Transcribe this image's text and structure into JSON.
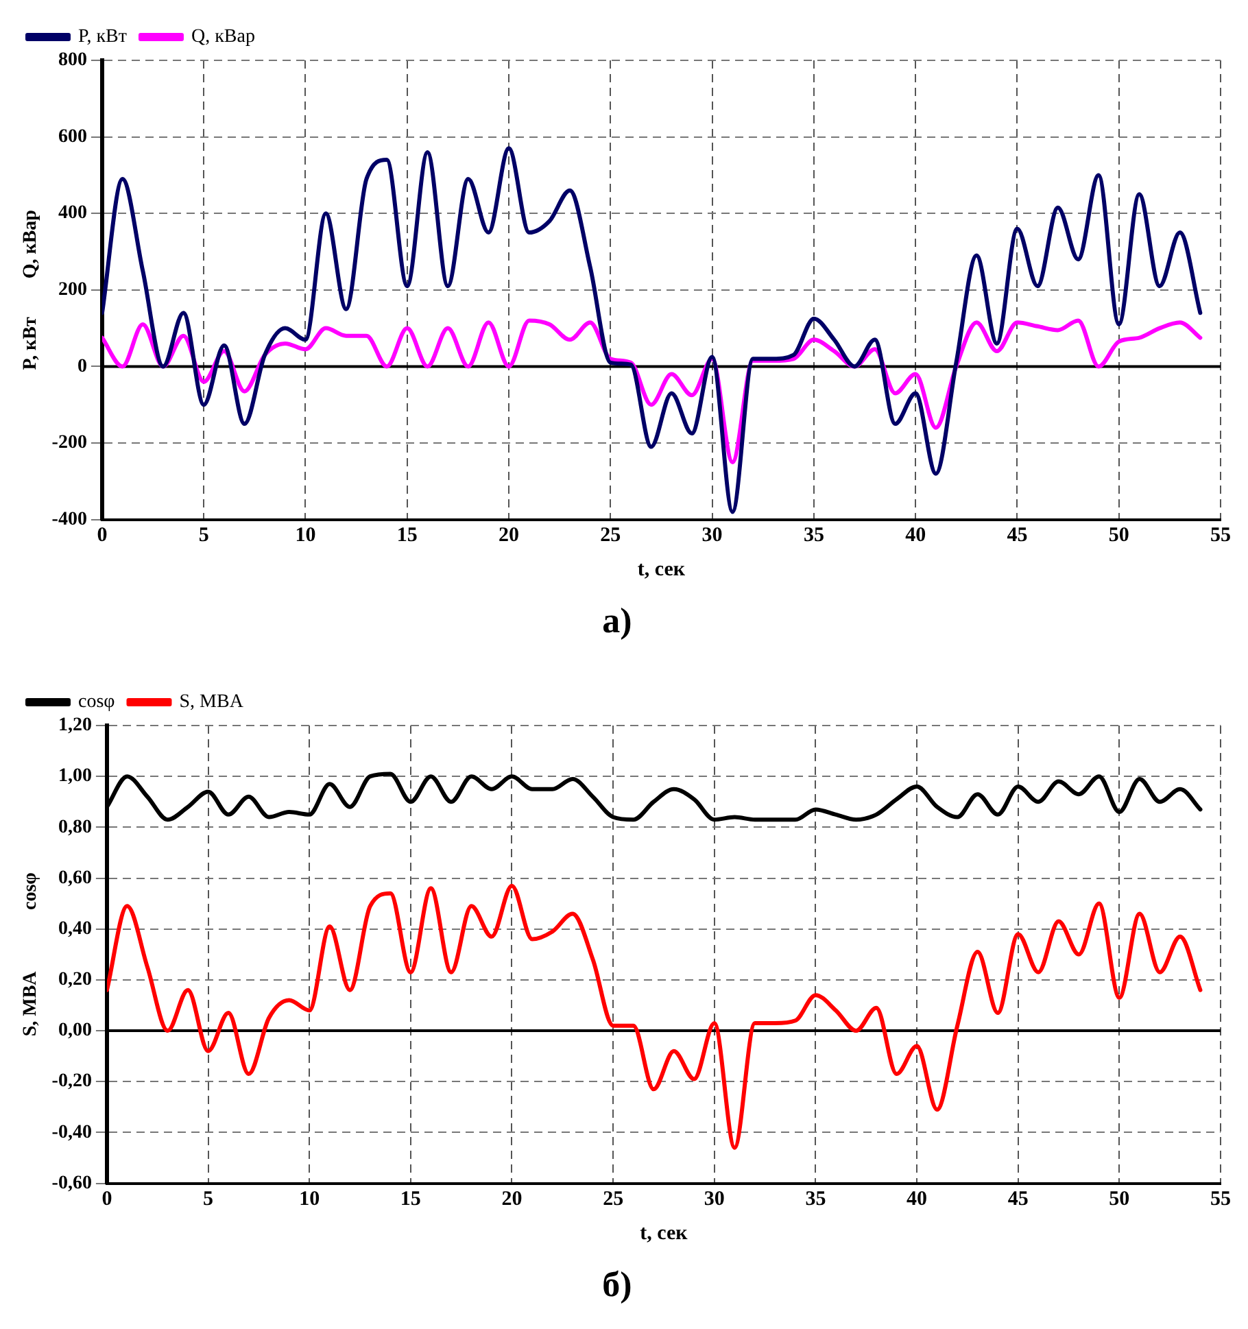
{
  "chart_data": [
    {
      "type": "line",
      "title": "а)",
      "xlabel": "t, сек",
      "ylabel": "P, кВт        Q, кВар",
      "x": [
        0,
        1,
        2,
        3,
        4,
        5,
        6,
        7,
        8,
        9,
        10,
        11,
        12,
        13,
        14,
        15,
        16,
        17,
        18,
        19,
        20,
        21,
        22,
        23,
        24,
        25,
        26,
        27,
        28,
        29,
        30,
        31,
        32,
        33,
        34,
        35,
        36,
        37,
        38,
        39,
        40,
        41,
        42,
        43,
        44,
        45,
        46,
        47,
        48,
        49,
        50,
        51,
        52,
        53,
        54
      ],
      "series": [
        {
          "name": "P, кВт",
          "color": "#000066",
          "values": [
            140,
            490,
            250,
            0,
            140,
            -100,
            55,
            -150,
            30,
            100,
            70,
            400,
            150,
            490,
            540,
            210,
            560,
            210,
            490,
            350,
            570,
            350,
            380,
            460,
            260,
            10,
            5,
            -210,
            -70,
            -175,
            25,
            -380,
            20,
            20,
            30,
            125,
            70,
            0,
            70,
            -150,
            -70,
            -280,
            10,
            290,
            60,
            360,
            210,
            415,
            280,
            500,
            110,
            450,
            210,
            350,
            140
          ]
        },
        {
          "name": "Q, кВар",
          "color": "#ff00ff",
          "values": [
            75,
            0,
            110,
            0,
            80,
            -40,
            40,
            -65,
            30,
            60,
            45,
            100,
            80,
            80,
            0,
            100,
            0,
            100,
            0,
            115,
            0,
            120,
            110,
            70,
            115,
            20,
            10,
            -100,
            -20,
            -75,
            20,
            -250,
            15,
            15,
            20,
            70,
            40,
            0,
            45,
            -70,
            -20,
            -160,
            0,
            115,
            40,
            115,
            105,
            95,
            120,
            0,
            65,
            75,
            100,
            115,
            75
          ]
        }
      ],
      "xlim": [
        0,
        55
      ],
      "xticks": [
        0,
        5,
        10,
        15,
        20,
        25,
        30,
        35,
        40,
        45,
        50,
        55
      ],
      "ylim": [
        -400,
        800
      ],
      "yticks": [
        -400,
        -200,
        0,
        200,
        400,
        600,
        800
      ],
      "ref_lines": [
        {
          "axis": "y",
          "value": 0,
          "color": "#000000"
        }
      ],
      "grid": true,
      "legend": "top left"
    },
    {
      "type": "line",
      "title": "б)",
      "xlabel": "t, сек",
      "ylabel": "S, MBA             cosφ",
      "x": [
        0,
        1,
        2,
        3,
        4,
        5,
        6,
        7,
        8,
        9,
        10,
        11,
        12,
        13,
        14,
        15,
        16,
        17,
        18,
        19,
        20,
        21,
        22,
        23,
        24,
        25,
        26,
        27,
        28,
        29,
        30,
        31,
        32,
        33,
        34,
        35,
        36,
        37,
        38,
        39,
        40,
        41,
        42,
        43,
        44,
        45,
        46,
        47,
        48,
        49,
        50,
        51,
        52,
        53,
        54
      ],
      "series": [
        {
          "name": "cosφ",
          "color": "#000000",
          "values": [
            0.88,
            1.0,
            0.92,
            0.83,
            0.88,
            0.94,
            0.85,
            0.92,
            0.84,
            0.86,
            0.85,
            0.97,
            0.88,
            1.0,
            1.01,
            0.9,
            1.0,
            0.9,
            1.0,
            0.95,
            1.0,
            0.95,
            0.95,
            0.99,
            0.92,
            0.84,
            0.83,
            0.9,
            0.95,
            0.91,
            0.83,
            0.84,
            0.83,
            0.83,
            0.83,
            0.87,
            0.85,
            0.83,
            0.85,
            0.91,
            0.96,
            0.88,
            0.84,
            0.93,
            0.85,
            0.96,
            0.9,
            0.98,
            0.93,
            1.0,
            0.86,
            0.99,
            0.9,
            0.95,
            0.87
          ]
        },
        {
          "name": "S, MBA",
          "color": "#ff0000",
          "values": [
            0.16,
            0.49,
            0.25,
            0.0,
            0.16,
            -0.08,
            0.07,
            -0.17,
            0.05,
            0.12,
            0.08,
            0.41,
            0.16,
            0.49,
            0.54,
            0.23,
            0.56,
            0.23,
            0.49,
            0.37,
            0.57,
            0.36,
            0.39,
            0.46,
            0.28,
            0.02,
            0.02,
            -0.23,
            -0.08,
            -0.19,
            0.03,
            -0.46,
            0.03,
            0.03,
            0.04,
            0.14,
            0.08,
            0.0,
            0.09,
            -0.17,
            -0.06,
            -0.31,
            0.02,
            0.31,
            0.07,
            0.38,
            0.23,
            0.43,
            0.3,
            0.5,
            0.13,
            0.46,
            0.23,
            0.37,
            0.16
          ]
        }
      ],
      "xlim": [
        0,
        55
      ],
      "xticks": [
        0,
        5,
        10,
        15,
        20,
        25,
        30,
        35,
        40,
        45,
        50,
        55
      ],
      "ylim": [
        -0.6,
        1.2
      ],
      "yticks": [
        {
          "value": -0.6,
          "label": "-0,60"
        },
        {
          "value": -0.4,
          "label": "-0,40"
        },
        {
          "value": -0.2,
          "label": "-0,20"
        },
        {
          "value": 0,
          "label": "0,00"
        },
        {
          "value": 0.2,
          "label": "0,20"
        },
        {
          "value": 0.4,
          "label": "0,40"
        },
        {
          "value": 0.6,
          "label": "0,60"
        },
        {
          "value": 0.8,
          "label": "0,80"
        },
        {
          "value": 1,
          "label": "1,00"
        },
        {
          "value": 1.2,
          "label": "1,20"
        }
      ],
      "ref_lines": [
        {
          "axis": "y",
          "value": 0,
          "color": "#000000"
        }
      ],
      "grid": true,
      "legend": "top left"
    }
  ]
}
